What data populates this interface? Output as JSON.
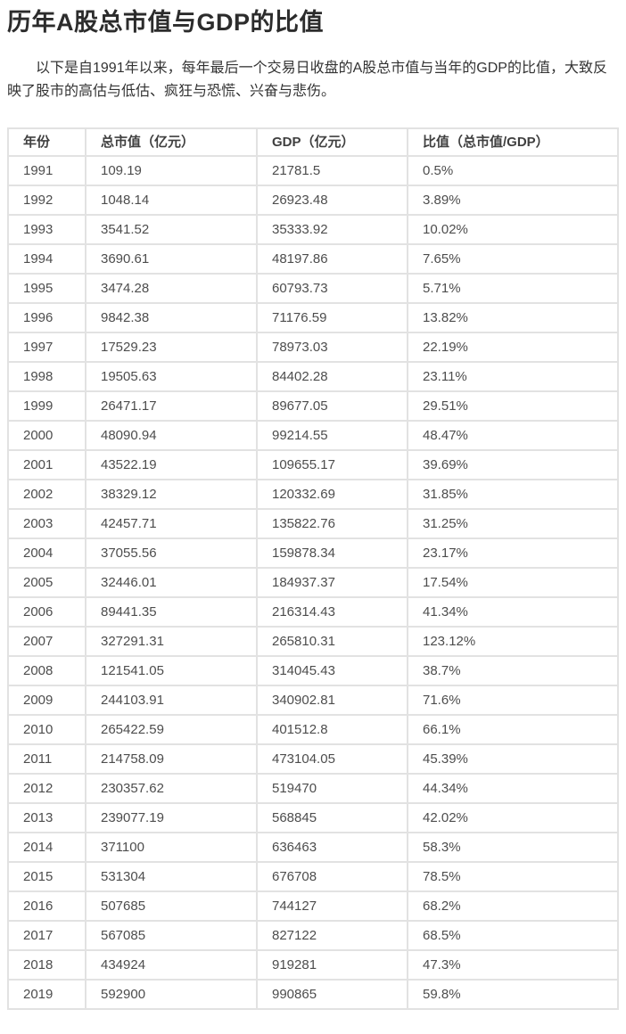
{
  "page": {
    "title": "历年A股总市值与GDP的比值",
    "intro": "以下是自1991年以来，每年最后一个交易日收盘的A股总市值与当年的GDP的比值，大致反映了股市的高估与低估、疯狂与恐慌、兴奋与悲伤。"
  },
  "colors": {
    "background": "#ffffff",
    "title_text": "#2c2c2c",
    "body_text": "#333333",
    "table_text": "#4d4d4d",
    "table_border": "#e2e2e2"
  },
  "table": {
    "headers": [
      "年份",
      "总市值（亿元）",
      "GDP（亿元）",
      "比值（总市值/GDP）"
    ],
    "rows": [
      [
        "1991",
        "109.19",
        "21781.5",
        "0.5%"
      ],
      [
        "1992",
        "1048.14",
        "26923.48",
        "3.89%"
      ],
      [
        "1993",
        "3541.52",
        "35333.92",
        "10.02%"
      ],
      [
        "1994",
        "3690.61",
        "48197.86",
        "7.65%"
      ],
      [
        "1995",
        "3474.28",
        "60793.73",
        "5.71%"
      ],
      [
        "1996",
        "9842.38",
        "71176.59",
        "13.82%"
      ],
      [
        "1997",
        "17529.23",
        "78973.03",
        "22.19%"
      ],
      [
        "1998",
        "19505.63",
        "84402.28",
        "23.11%"
      ],
      [
        "1999",
        "26471.17",
        "89677.05",
        "29.51%"
      ],
      [
        "2000",
        "48090.94",
        "99214.55",
        "48.47%"
      ],
      [
        "2001",
        "43522.19",
        "109655.17",
        "39.69%"
      ],
      [
        "2002",
        "38329.12",
        "120332.69",
        "31.85%"
      ],
      [
        "2003",
        "42457.71",
        "135822.76",
        "31.25%"
      ],
      [
        "2004",
        "37055.56",
        "159878.34",
        "23.17%"
      ],
      [
        "2005",
        "32446.01",
        "184937.37",
        "17.54%"
      ],
      [
        "2006",
        "89441.35",
        "216314.43",
        "41.34%"
      ],
      [
        "2007",
        "327291.31",
        "265810.31",
        "123.12%"
      ],
      [
        "2008",
        "121541.05",
        "314045.43",
        "38.7%"
      ],
      [
        "2009",
        "244103.91",
        "340902.81",
        "71.6%"
      ],
      [
        "2010",
        "265422.59",
        "401512.8",
        "66.1%"
      ],
      [
        "2011",
        "214758.09",
        "473104.05",
        "45.39%"
      ],
      [
        "2012",
        "230357.62",
        "519470",
        "44.34%"
      ],
      [
        "2013",
        "239077.19",
        "568845",
        "42.02%"
      ],
      [
        "2014",
        "371100",
        "636463",
        "58.3%"
      ],
      [
        "2015",
        "531304",
        "676708",
        "78.5%"
      ],
      [
        "2016",
        "507685",
        "744127",
        "68.2%"
      ],
      [
        "2017",
        "567085",
        "827122",
        "68.5%"
      ],
      [
        "2018",
        "434924",
        "919281",
        "47.3%"
      ],
      [
        "2019",
        "592900",
        "990865",
        "59.8%"
      ]
    ]
  }
}
